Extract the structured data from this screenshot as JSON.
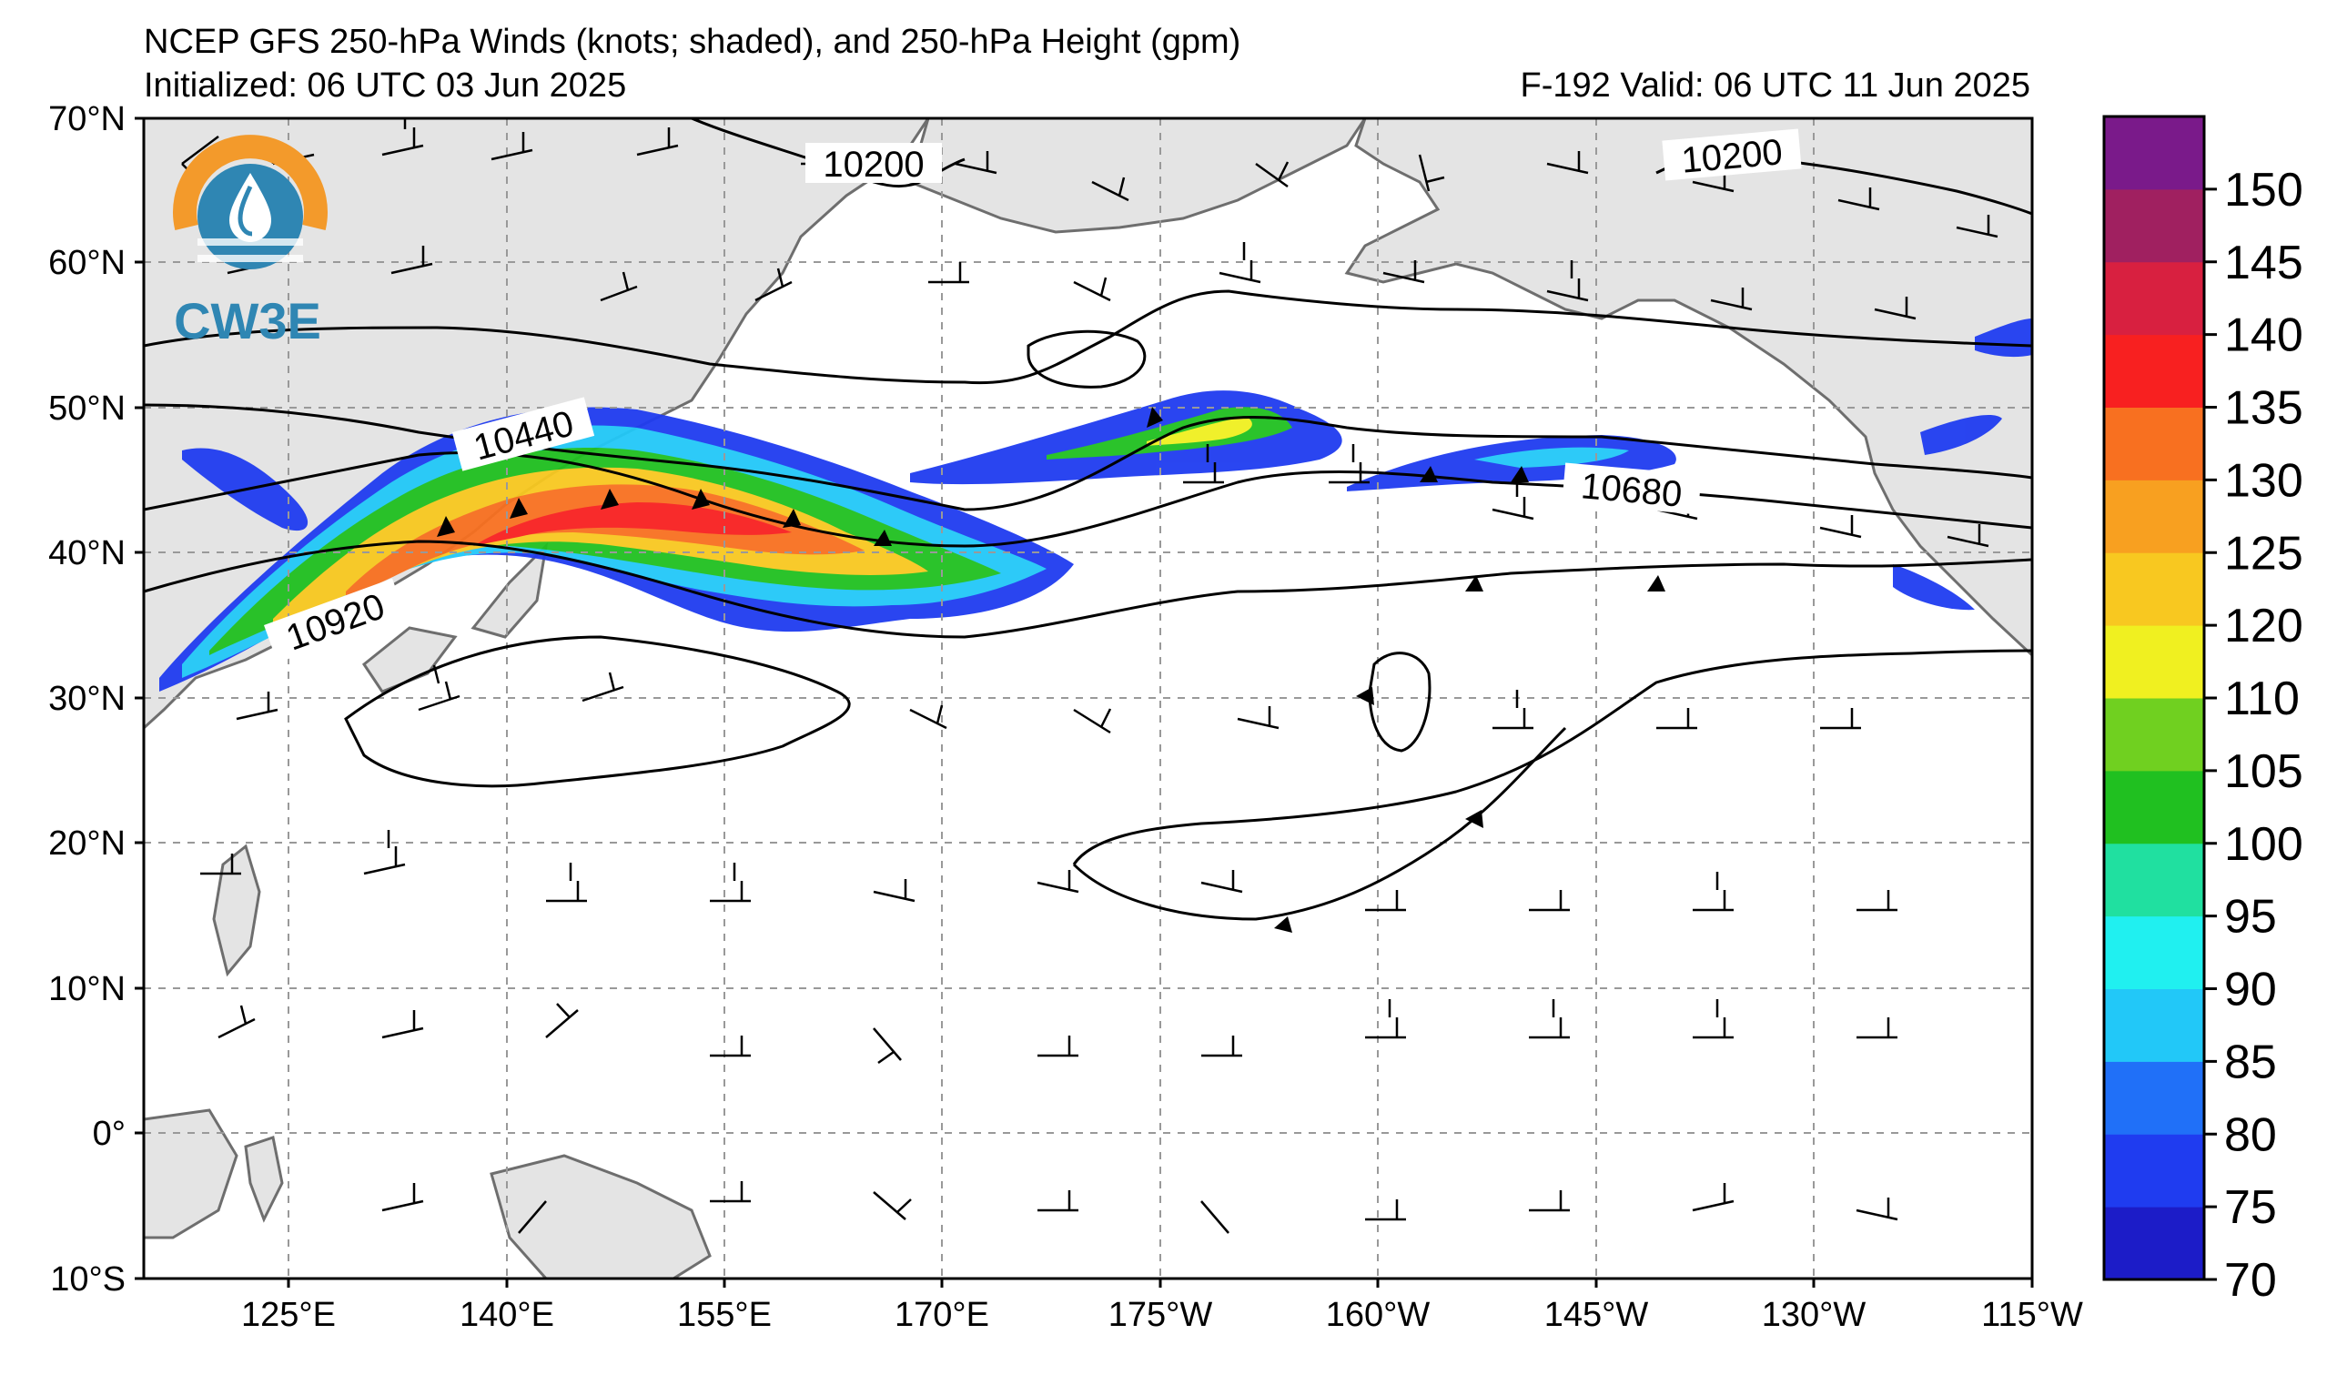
{
  "header": {
    "title": "NCEP GFS 250-hPa Winds (knots; shaded), and 250-hPa Height (gpm)",
    "initialized": "Initialized: 06 UTC 03 Jun 2025",
    "valid": "F-192  Valid: 06 UTC 11 Jun 2025"
  },
  "logo": {
    "text": "CW3E"
  },
  "axes": {
    "lat_labels": [
      "70°N",
      "60°N",
      "50°N",
      "40°N",
      "30°N",
      "20°N",
      "10°N",
      "0°",
      "10°S"
    ],
    "lon_labels": [
      "125°E",
      "140°E",
      "155°E",
      "170°E",
      "175°W",
      "160°W",
      "145°W",
      "130°W",
      "115°W"
    ]
  },
  "colorbar": {
    "labels": [
      "70",
      "75",
      "80",
      "85",
      "90",
      "95",
      "100",
      "105",
      "110",
      "120",
      "125",
      "130",
      "135",
      "140",
      "145",
      "150"
    ],
    "colors": [
      "#1c1cc8",
      "#1f3cf0",
      "#2070f8",
      "#22c8f8",
      "#20f0f0",
      "#20e0a0",
      "#20c020",
      "#70d020",
      "#f0f020",
      "#f8c820",
      "#f8a020",
      "#f87020",
      "#f82020",
      "#d82040",
      "#a02060",
      "#7a1a8a"
    ]
  },
  "contour_labels": [
    "10200",
    "10200",
    "10440",
    "10680",
    "10920"
  ]
}
